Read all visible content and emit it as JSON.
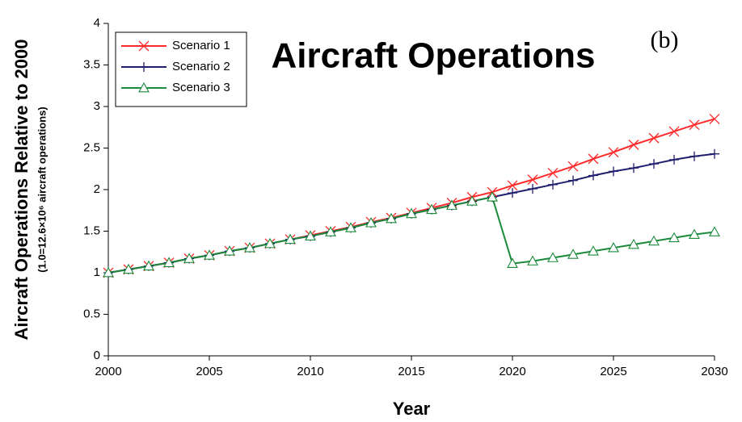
{
  "chart_data": {
    "type": "line",
    "title": "Aircraft Operations",
    "annotation": "(b)",
    "x_label": "Year",
    "y_label": "Aircraft Operations Relative to 2000",
    "y_sublabel": "(1.0=12.6×10⁶ aircraft operations)",
    "x": [
      2000,
      2001,
      2002,
      2003,
      2004,
      2005,
      2006,
      2007,
      2008,
      2009,
      2010,
      2011,
      2012,
      2013,
      2014,
      2015,
      2016,
      2017,
      2018,
      2019,
      2020,
      2021,
      2022,
      2023,
      2024,
      2025,
      2026,
      2027,
      2028,
      2029,
      2030
    ],
    "series": [
      {
        "name": "Scenario 1",
        "color": "#ff2a2a",
        "marker": "x",
        "values": [
          1.0,
          1.04,
          1.08,
          1.12,
          1.17,
          1.21,
          1.26,
          1.3,
          1.35,
          1.4,
          1.45,
          1.5,
          1.55,
          1.61,
          1.66,
          1.72,
          1.78,
          1.84,
          1.91,
          1.97,
          2.05,
          2.12,
          2.2,
          2.28,
          2.37,
          2.45,
          2.54,
          2.62,
          2.7,
          2.78,
          2.85
        ]
      },
      {
        "name": "Scenario 2",
        "color": "#1f1f6e",
        "marker": "plus",
        "values": [
          1.0,
          1.04,
          1.08,
          1.12,
          1.17,
          1.21,
          1.26,
          1.3,
          1.35,
          1.4,
          1.44,
          1.49,
          1.54,
          1.6,
          1.65,
          1.71,
          1.76,
          1.81,
          1.86,
          1.91,
          1.96,
          2.01,
          2.06,
          2.11,
          2.17,
          2.22,
          2.26,
          2.31,
          2.36,
          2.4,
          2.43
        ]
      },
      {
        "name": "Scenario 3",
        "color": "#1a8a3a",
        "marker": "triangle",
        "values": [
          1.0,
          1.04,
          1.08,
          1.12,
          1.17,
          1.21,
          1.26,
          1.3,
          1.35,
          1.4,
          1.44,
          1.49,
          1.54,
          1.6,
          1.65,
          1.71,
          1.76,
          1.81,
          1.86,
          1.91,
          1.11,
          1.14,
          1.18,
          1.22,
          1.26,
          1.3,
          1.34,
          1.38,
          1.42,
          1.46,
          1.49
        ]
      }
    ],
    "xlim": [
      2000,
      2030
    ],
    "xticks": [
      2000,
      2005,
      2010,
      2015,
      2020,
      2025,
      2030
    ],
    "ylim": [
      0,
      4
    ],
    "yticks": [
      0,
      0.5,
      1,
      1.5,
      2,
      2.5,
      3,
      3.5,
      4
    ],
    "grid": false,
    "legend": "upper left"
  }
}
